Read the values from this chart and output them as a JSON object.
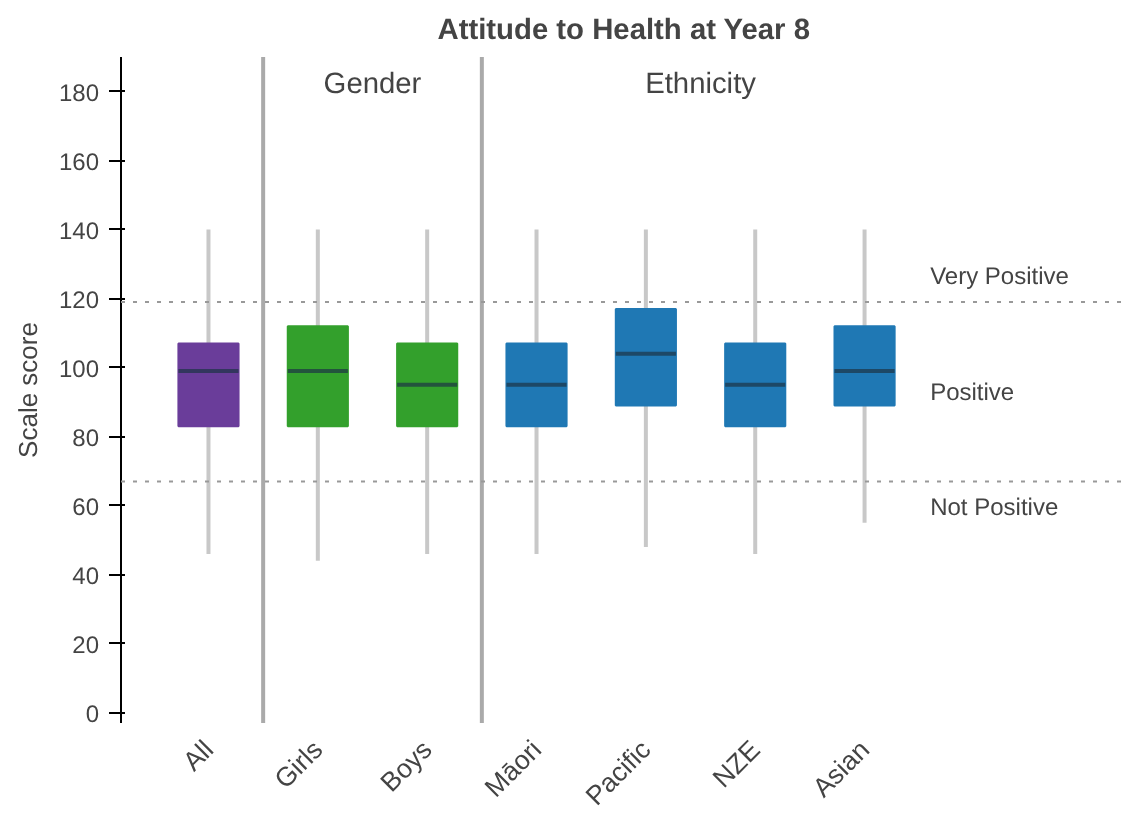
{
  "chart_data": {
    "type": "box",
    "title": "Attitude to Health at Year 8",
    "ylabel": "Scale score",
    "categories": [
      "All",
      "Girls",
      "Boys",
      "Māori",
      "Pacific",
      "NZE",
      "Asian"
    ],
    "colors": [
      "#6a3d9a",
      "#33a02c",
      "#33a02c",
      "#1f78b4",
      "#1f78b4",
      "#1f78b4",
      "#1f78b4"
    ],
    "boxes": [
      {
        "low": 46,
        "q1": 83,
        "median": 99,
        "q3": 107,
        "high": 140
      },
      {
        "low": 44,
        "q1": 83,
        "median": 99,
        "q3": 112,
        "high": 140
      },
      {
        "low": 46,
        "q1": 83,
        "median": 95,
        "q3": 107,
        "high": 140
      },
      {
        "low": 46,
        "q1": 83,
        "median": 95,
        "q3": 107,
        "high": 140
      },
      {
        "low": 48,
        "q1": 89,
        "median": 104,
        "q3": 117,
        "high": 140
      },
      {
        "low": 46,
        "q1": 83,
        "median": 95,
        "q3": 107,
        "high": 140
      },
      {
        "low": 55,
        "q1": 89,
        "median": 99,
        "q3": 112,
        "high": 140
      }
    ],
    "ylim": [
      -3,
      190
    ],
    "yticks": [
      0,
      20,
      40,
      60,
      80,
      100,
      120,
      140,
      160,
      180
    ],
    "grid": false,
    "ref_lines": [
      {
        "axis": "y",
        "value": 119,
        "label": "Very Positive",
        "line_style": "dotted",
        "color": "#999999"
      },
      {
        "axis": "y",
        "value": 67,
        "label": "Not Positive",
        "line_style": "dotted",
        "color": "#999999"
      }
    ],
    "annotations": [
      "Gender",
      "Ethnicity",
      "Positive"
    ]
  }
}
